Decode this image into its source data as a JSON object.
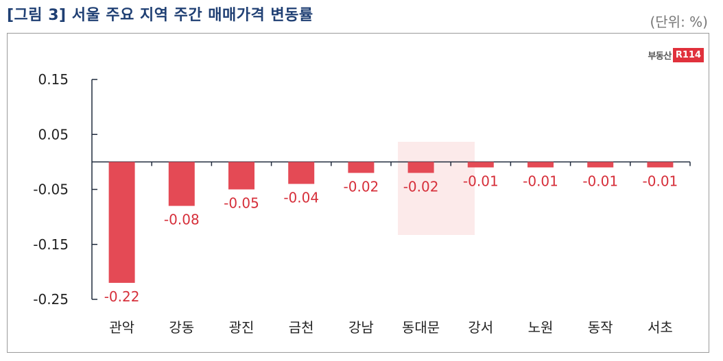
{
  "header": {
    "title": "[그림 3] 서울 주요 지역 주간 매매가격 변동률",
    "unit": "(단위: %)"
  },
  "logo": {
    "text": "부동산",
    "mark": "R114"
  },
  "colors": {
    "bar": "#e44a55",
    "label": "#d62f3a",
    "axis": "#1f2a3c",
    "title": "#1f3f73"
  },
  "chart_data": {
    "type": "bar",
    "title": "[그림 3] 서울 주요 지역 주간 매매가격 변동률",
    "categories": [
      "관악",
      "강동",
      "광진",
      "금천",
      "강남",
      "동대문",
      "강서",
      "노원",
      "동작",
      "서초"
    ],
    "values": [
      -0.22,
      -0.08,
      -0.05,
      -0.04,
      -0.02,
      -0.02,
      -0.01,
      -0.01,
      -0.01,
      -0.01
    ],
    "value_labels": [
      "-0.22",
      "-0.08",
      "-0.05",
      "-0.04",
      "-0.02",
      "-0.02",
      "-0.01",
      "-0.01",
      "-0.01",
      "-0.01"
    ],
    "yticks": [
      0.15,
      0.05,
      -0.05,
      -0.15,
      -0.25
    ],
    "ytick_labels": [
      "0.15",
      "0.05",
      "-0.05",
      "-0.15",
      "-0.25"
    ],
    "ylim": [
      -0.25,
      0.15
    ],
    "xlabel": "",
    "ylabel": "",
    "grid": false,
    "legend": "none"
  }
}
